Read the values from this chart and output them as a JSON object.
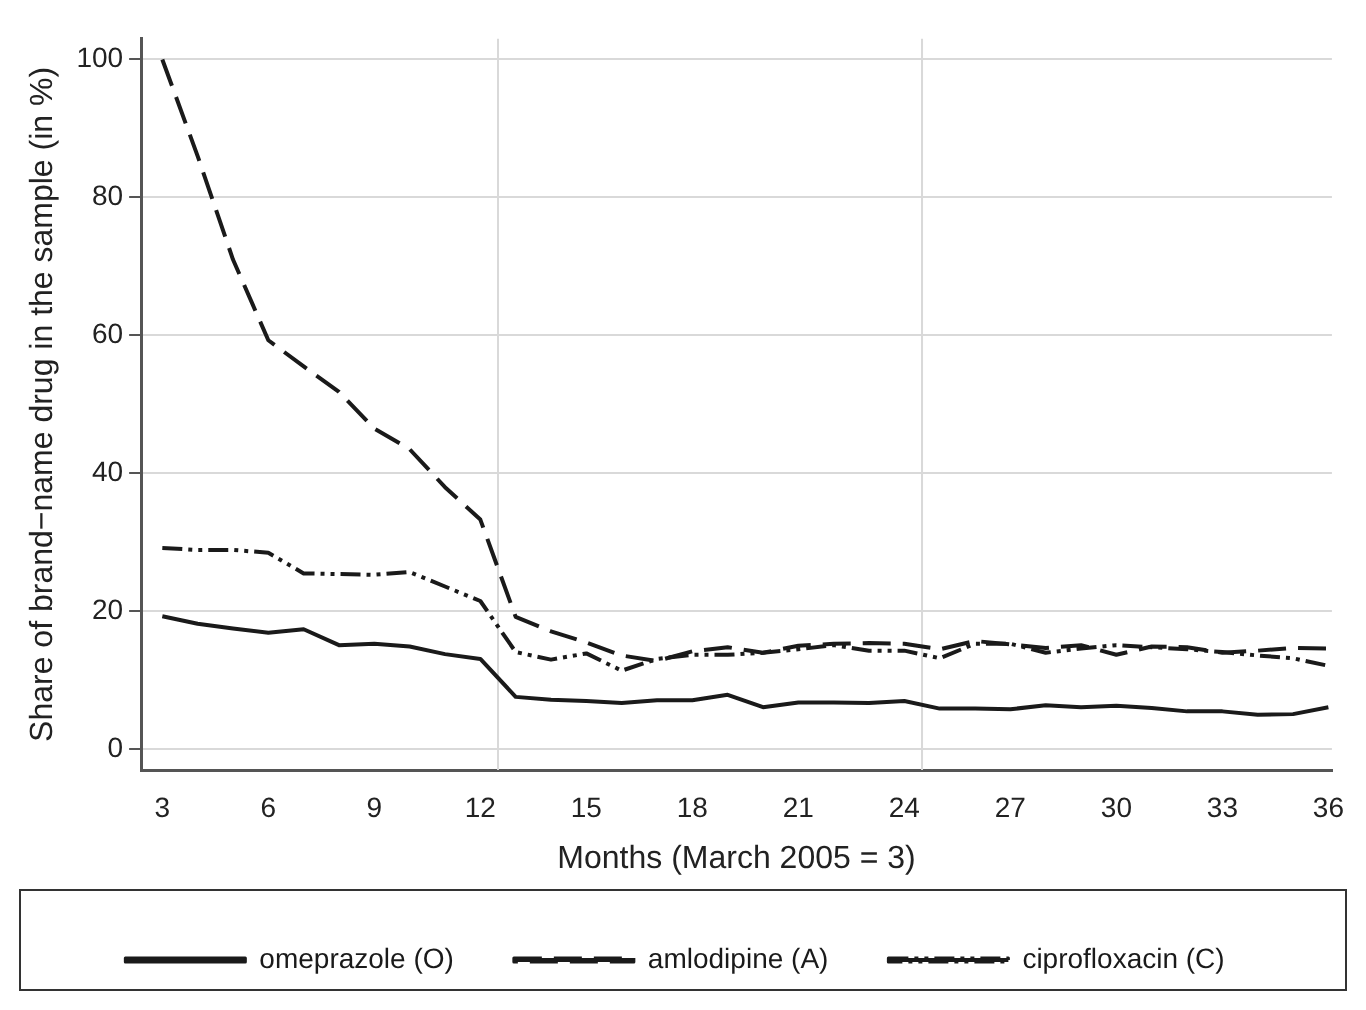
{
  "chart_data": {
    "type": "line",
    "xlabel": "Months (March 2005 = 3)",
    "ylabel": "Share of brand−name drug in the sample (in %)",
    "x": [
      3,
      4,
      5,
      6,
      7,
      8,
      9,
      10,
      11,
      12,
      13,
      14,
      15,
      16,
      17,
      18,
      19,
      20,
      21,
      22,
      23,
      24,
      25,
      26,
      27,
      28,
      29,
      30,
      31,
      32,
      33,
      34,
      35,
      36
    ],
    "series": [
      {
        "name": "omeprazole (O)",
        "color": "#1a1a1a",
        "line_style": "solid",
        "values": [
          19.3,
          18.2,
          17.5,
          16.9,
          17.4,
          15.1,
          15.3,
          14.9,
          13.8,
          13.1,
          7.6,
          7.2,
          7.0,
          6.7,
          7.1,
          7.1,
          7.9,
          6.1,
          6.8,
          6.8,
          6.7,
          7.0,
          5.9,
          5.9,
          5.8,
          6.4,
          6.1,
          6.3,
          6.0,
          5.5,
          5.5,
          5.0,
          5.1,
          6.1
        ]
      },
      {
        "name": "amlodipine (A)",
        "color": "#1a1a1a",
        "line_style": "dashed",
        "values": [
          100,
          86,
          71,
          59.3,
          55.5,
          51.8,
          46.5,
          43.5,
          38,
          33.3,
          19.2,
          17.1,
          15.5,
          13.6,
          12.8,
          14.2,
          14.8,
          14.0,
          15.0,
          15.3,
          15.4,
          15.3,
          14.5,
          15.7,
          15.2,
          14.7,
          15.1,
          13.7,
          14.9,
          14.8,
          14.0,
          14.3,
          14.7,
          14.6
        ]
      },
      {
        "name": "ciprofloxacin (C)",
        "color": "#1a1a1a",
        "line_style": "dashdotdot",
        "values": [
          29.2,
          28.9,
          28.9,
          28.5,
          25.5,
          25.4,
          25.3,
          25.7,
          23.6,
          21.5,
          14.1,
          13.0,
          13.9,
          11.4,
          13.1,
          13.7,
          13.7,
          14.0,
          14.5,
          15.1,
          14.3,
          14.3,
          13.2,
          15.3,
          15.3,
          14.0,
          14.6,
          15.1,
          14.8,
          14.5,
          14.1,
          13.6,
          13.2,
          12.1
        ]
      }
    ],
    "xlim": [
      2.4,
      36.1
    ],
    "xticks": [
      3,
      6,
      9,
      12,
      15,
      18,
      21,
      24,
      27,
      30,
      33,
      36
    ],
    "ylim": [
      -3,
      103
    ],
    "yticks": [
      0,
      20,
      40,
      60,
      80,
      100
    ],
    "grid": "y",
    "legend": "bottom",
    "marker": "none",
    "ref_lines": [
      {
        "axis": "x",
        "value": 12.5,
        "color": "#d9d9d9"
      },
      {
        "axis": "x",
        "value": 24.5,
        "color": "#d9d9d9"
      }
    ]
  }
}
